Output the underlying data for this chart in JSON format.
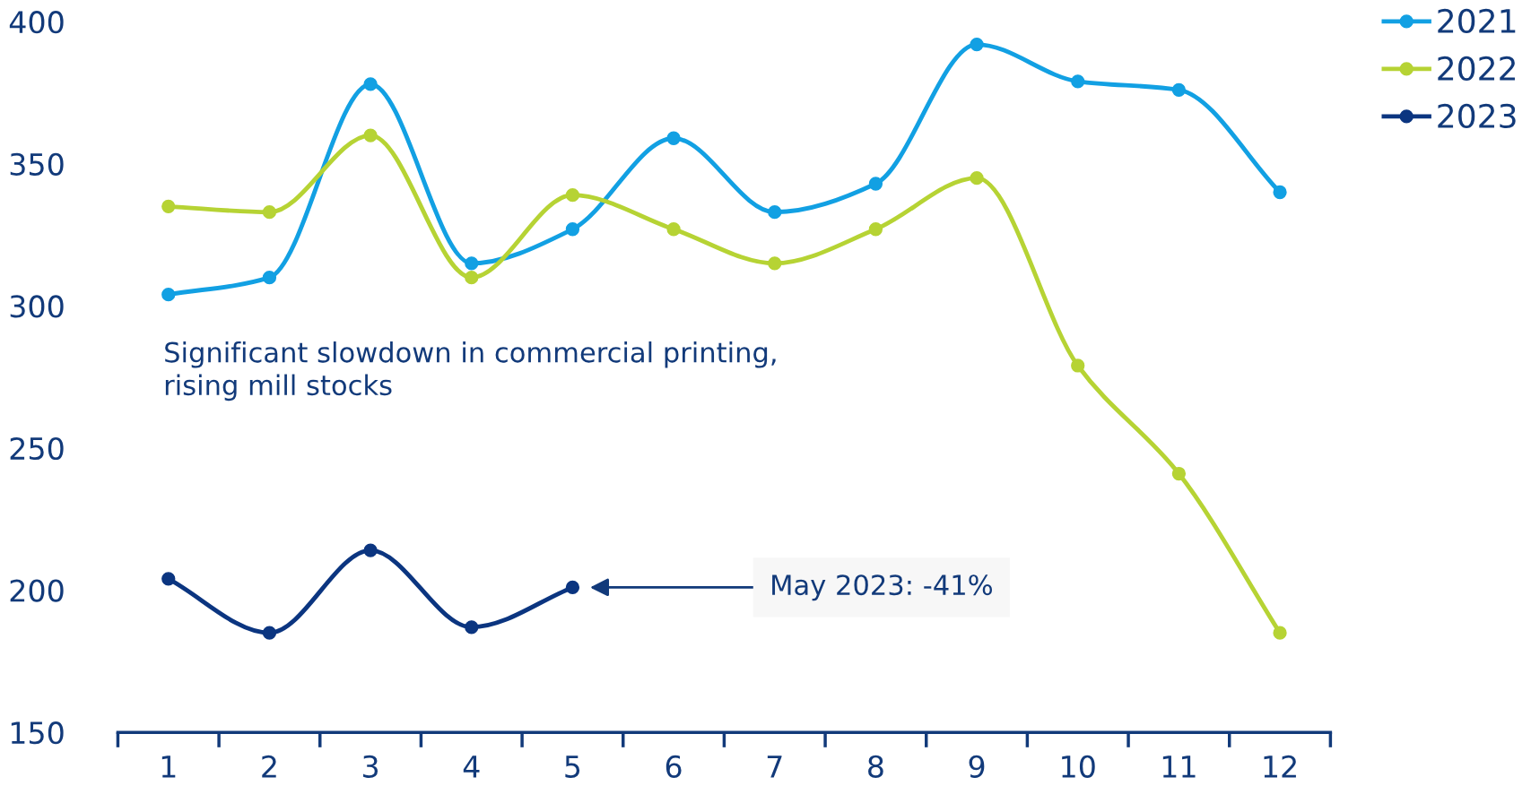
{
  "chart_data": {
    "type": "line",
    "categories": [
      "1",
      "2",
      "3",
      "4",
      "5",
      "6",
      "7",
      "8",
      "9",
      "10",
      "11",
      "12"
    ],
    "series": [
      {
        "name": "2021",
        "color": "#12a0e3",
        "values": [
          304,
          310,
          378,
          315,
          327,
          359,
          333,
          343,
          392,
          379,
          376,
          340
        ]
      },
      {
        "name": "2022",
        "color": "#b6d334",
        "values": [
          335,
          333,
          360,
          310,
          339,
          327,
          315,
          327,
          345,
          279,
          241,
          185
        ]
      },
      {
        "name": "2023",
        "color": "#0b3580",
        "values": [
          204,
          185,
          214,
          187,
          201,
          null,
          null,
          null,
          null,
          null,
          null,
          null
        ]
      }
    ],
    "ylim": [
      150,
      400
    ],
    "yticks": [
      150,
      200,
      250,
      300,
      350,
      400
    ],
    "annotations": [
      "Significant slowdown in commercial printing,\nrising mill stocks",
      "May 2023: -41%"
    ],
    "legend": "top right",
    "marker": "circle",
    "line_style": "solid",
    "grid": false
  }
}
